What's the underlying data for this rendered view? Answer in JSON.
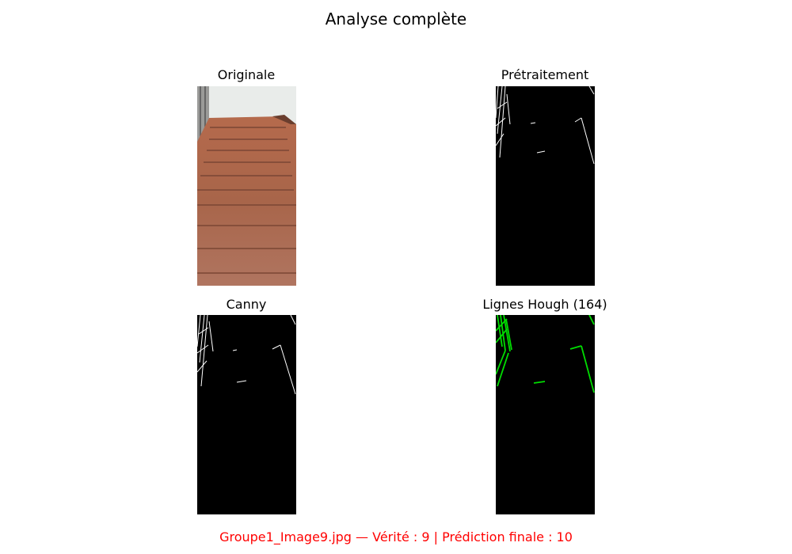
{
  "figure": {
    "title": "Analyse complète",
    "panels": [
      {
        "title": "Originale"
      },
      {
        "title": "Prétraitement"
      },
      {
        "title": "Canny"
      },
      {
        "title": "Lignes Hough (164)"
      }
    ],
    "footer": "Groupe1_Image9.jpg — Vérité : 9 | Prédiction finale : 10",
    "colors": {
      "footer": "#ff0000",
      "hough_lines": "#00dd00",
      "edges": "#ffffff"
    }
  }
}
